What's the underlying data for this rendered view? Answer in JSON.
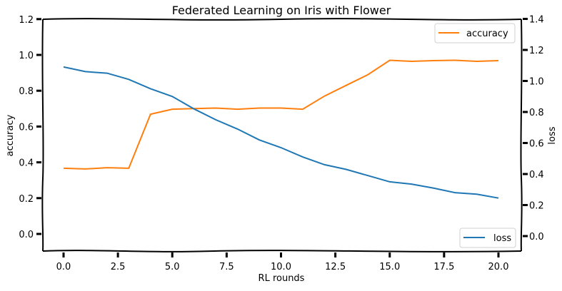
{
  "chart_data": {
    "type": "line",
    "title": "Federated Learning on Iris with Flower",
    "xlabel": "RL rounds",
    "ylabel_left": "accuracy",
    "ylabel_right": "loss",
    "x": [
      0,
      1,
      2,
      3,
      4,
      5,
      6,
      7,
      8,
      9,
      10,
      11,
      12,
      13,
      14,
      15,
      16,
      17,
      18,
      19,
      20
    ],
    "xlim": [
      -1,
      21
    ],
    "xticks": [
      "0.0",
      "2.5",
      "5.0",
      "7.5",
      "10.0",
      "12.5",
      "15.0",
      "17.5",
      "20.0"
    ],
    "ylim_left": [
      -0.09,
      1.2
    ],
    "yticks_left": [
      "0.0",
      "0.2",
      "0.4",
      "0.6",
      "0.8",
      "1.0",
      "1.2"
    ],
    "ylim_right": [
      -0.08,
      1.4
    ],
    "yticks_right": [
      "0.0",
      "0.2",
      "0.4",
      "0.6",
      "0.8",
      "1.0",
      "1.2",
      "1.4"
    ],
    "grid": false,
    "style": "xkcd-like wavy spines",
    "series": [
      {
        "name": "accuracy",
        "axis": "left",
        "color": "#ff7f0e",
        "legend_position": "upper right",
        "values": [
          0.367,
          0.363,
          0.37,
          0.367,
          0.669,
          0.697,
          0.7,
          0.703,
          0.697,
          0.703,
          0.703,
          0.697,
          0.77,
          0.83,
          0.89,
          0.97,
          0.964,
          0.968,
          0.97,
          0.964,
          0.968
        ]
      },
      {
        "name": "loss",
        "axis": "right",
        "color": "#1f77b4",
        "legend_position": "lower right",
        "values": [
          1.09,
          1.06,
          1.05,
          1.01,
          0.95,
          0.9,
          0.82,
          0.75,
          0.69,
          0.62,
          0.57,
          0.51,
          0.46,
          0.43,
          0.39,
          0.35,
          0.335,
          0.31,
          0.28,
          0.27,
          0.245
        ]
      }
    ]
  }
}
